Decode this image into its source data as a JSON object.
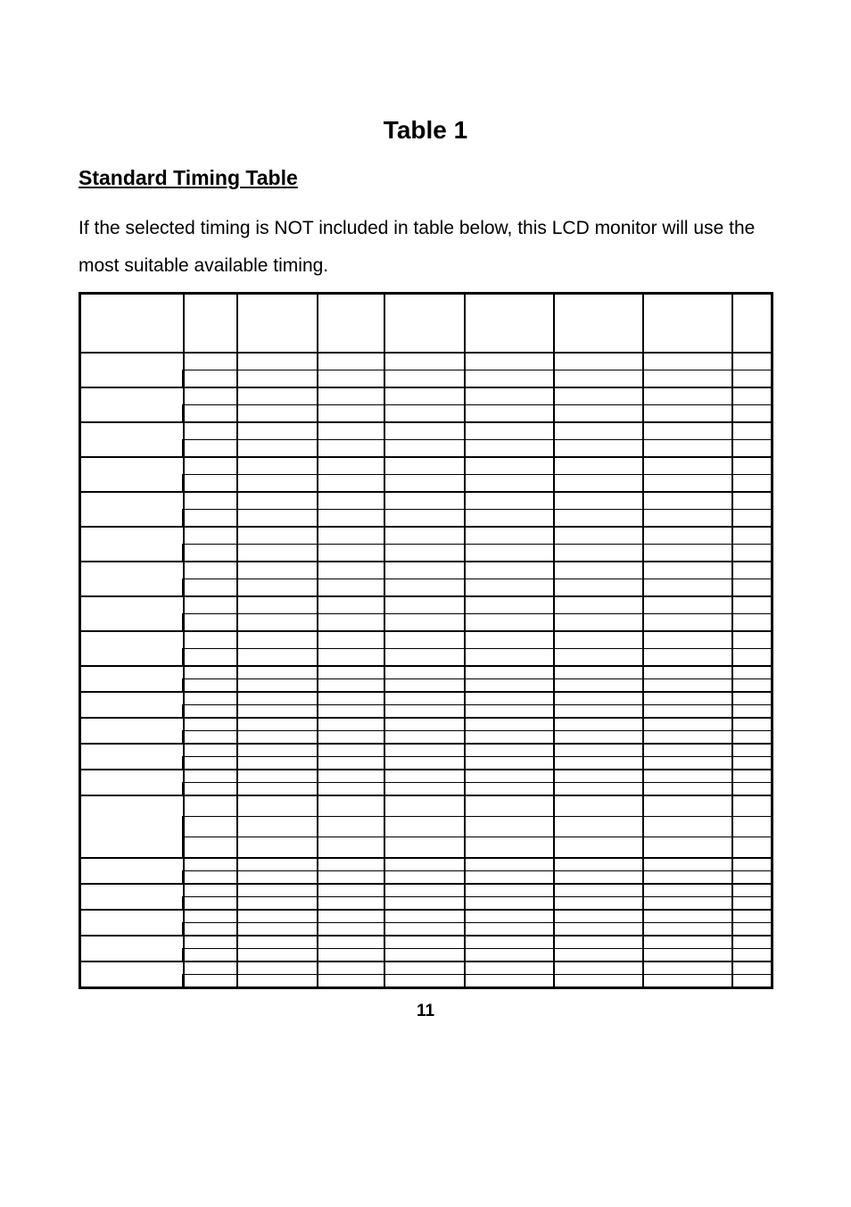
{
  "title": "Table 1",
  "subtitle": "Standard Timing Table",
  "description": "If the selected timing is NOT included in table below, this LCD monitor will use the most suitable available timing.",
  "page_number": "11",
  "table": {
    "columns": 9,
    "rows": [
      {
        "rowspan": 1,
        "height": "header",
        "band_end": true
      },
      {
        "rowspan": 2,
        "height": "thin"
      },
      {
        "rowspan": 2,
        "height": "thin"
      },
      {
        "rowspan": 2,
        "height": "thin"
      },
      {
        "rowspan": 2,
        "height": "thin"
      },
      {
        "rowspan": 2,
        "height": "thin"
      },
      {
        "rowspan": 2,
        "height": "thin"
      },
      {
        "rowspan": 2,
        "height": "thin"
      },
      {
        "rowspan": 2,
        "height": "thin"
      },
      {
        "rowspan": 2,
        "height": "thin"
      },
      {
        "rowspan": 2,
        "height": "short"
      },
      {
        "rowspan": 2,
        "height": "short"
      },
      {
        "rowspan": 2,
        "height": "short"
      },
      {
        "rowspan": 2,
        "height": "short"
      },
      {
        "rowspan": 2,
        "height": "short"
      },
      {
        "rowspan": 3,
        "height": "med"
      },
      {
        "rowspan": 2,
        "height": "short"
      },
      {
        "rowspan": 2,
        "height": "short"
      },
      {
        "rowspan": 2,
        "height": "short"
      },
      {
        "rowspan": 2,
        "height": "short"
      },
      {
        "rowspan": 2,
        "height": "short"
      }
    ]
  }
}
